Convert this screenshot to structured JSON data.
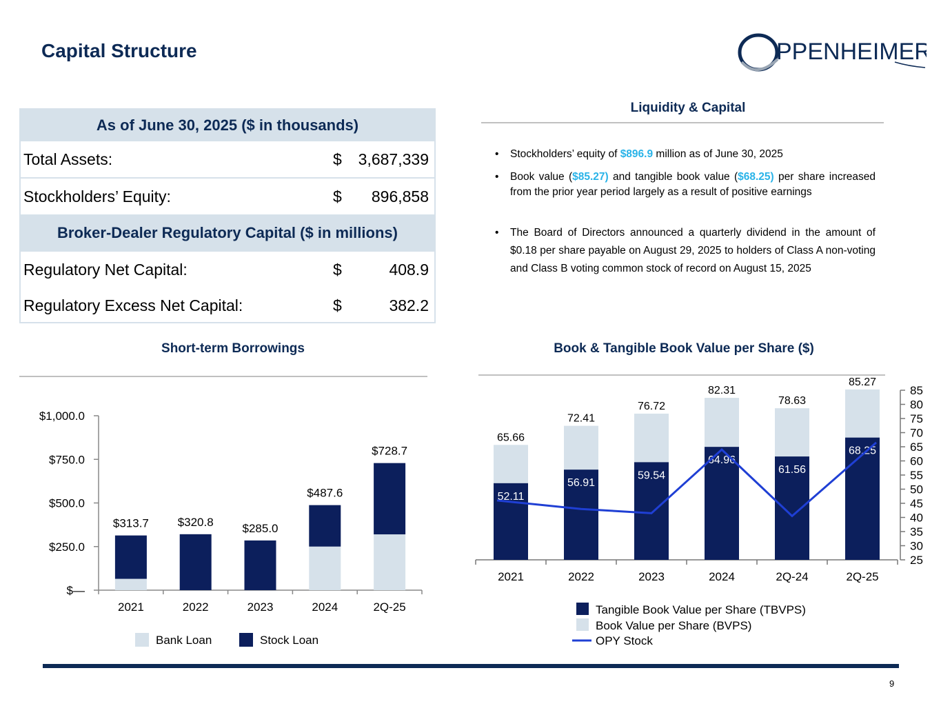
{
  "title": "Capital Structure",
  "logo": {
    "text": "PPENHEIMER"
  },
  "table": {
    "header1": "As of June 30, 2025 ($ in thousands)",
    "rows1": [
      {
        "label": "Total Assets:",
        "currency": "$",
        "value": "3,687,339"
      },
      {
        "label": "Stockholders’ Equity:",
        "currency": "$",
        "value": "896,858"
      }
    ],
    "header2": "Broker-Dealer Regulatory Capital ($ in millions)",
    "rows2": [
      {
        "label": "Regulatory Net Capital:",
        "currency": "$",
        "value": "408.9"
      },
      {
        "label": "Regulatory Excess Net Capital:",
        "currency": "$",
        "value": "382.2"
      }
    ]
  },
  "liquidity": {
    "heading": "Liquidity & Capital",
    "bullets": [
      {
        "pre": "Stockholders’ equity of ",
        "h1": "$896.9",
        "mid": " million as of June 30, 2025",
        "h2": "",
        "post": ""
      },
      {
        "pre": "Book value (",
        "h1": "$85.27)",
        "mid": " and tangible book value (",
        "h2": "$68.25)",
        "post": " per share increased from the prior year period largely as a result of positive earnings"
      },
      {
        "pre": "The Board of Directors announced a quarterly dividend in the amount of $0.18 per share payable on August 29, 2025 to holders of Class A non-voting and Class B voting common stock of record on August 15, 2025",
        "h1": "",
        "mid": "",
        "h2": "",
        "post": ""
      }
    ]
  },
  "colors": {
    "navy": "#0c1f5c",
    "light": "#d6e1ea",
    "line": "#1f3fd4",
    "accent": "#29b3e8"
  },
  "chart_data": [
    {
      "type": "bar",
      "stacked": true,
      "title": "Short-term Borrowings",
      "categories": [
        "2021",
        "2022",
        "2023",
        "2024",
        "2Q-25"
      ],
      "series": [
        {
          "name": "Bank Loan",
          "values": [
            65,
            0,
            0,
            250,
            320
          ]
        },
        {
          "name": "Stock Loan",
          "values": [
            248.7,
            320.8,
            285.0,
            237.6,
            408.7
          ]
        }
      ],
      "totals": [
        313.7,
        320.8,
        285.0,
        487.6,
        728.7
      ],
      "total_labels": [
        "$313.7",
        "$320.8",
        "$285.0",
        "$487.6",
        "$728.7"
      ],
      "ylim": [
        0,
        1000
      ],
      "yticks": [
        0,
        250,
        500,
        750,
        1000
      ],
      "ytick_labels": [
        "$—",
        "$250.0",
        "$500.0",
        "$750.0",
        "$1,000.0"
      ],
      "legend": [
        "Bank Loan",
        "Stock Loan"
      ]
    },
    {
      "type": "bar",
      "title": "Book & Tangible Book Value per Share ($)",
      "categories": [
        "2021",
        "2022",
        "2023",
        "2024",
        "2Q-24",
        "2Q-25"
      ],
      "series": [
        {
          "name": "Tangible Book Value per Share (TBVPS)",
          "values": [
            52.11,
            56.91,
            59.54,
            64.96,
            61.56,
            68.25
          ]
        },
        {
          "name": "Book Value per Share (BVPS)",
          "values": [
            65.66,
            72.41,
            76.72,
            82.31,
            78.63,
            85.27
          ]
        }
      ],
      "tbv_labels": [
        "52.11",
        "56.91",
        "59.54",
        "64.96",
        "61.56",
        "68.25"
      ],
      "bv_labels": [
        "65.66",
        "72.41",
        "76.72",
        "82.31",
        "78.63",
        "85.27"
      ],
      "line": {
        "name": "OPY Stock",
        "values": [
          46,
          43,
          41.5,
          64,
          40.5,
          66.5
        ]
      },
      "y2lim": [
        25,
        85
      ],
      "y2ticks": [
        "25",
        "30",
        "35",
        "40",
        "45",
        "50",
        "55",
        "60",
        "65",
        "70",
        "75",
        "80",
        "85"
      ],
      "legend": [
        "Tangible Book Value per Share (TBVPS)",
        "Book Value per Share (BVPS)",
        "OPY Stock"
      ]
    }
  ],
  "page_number": "9"
}
